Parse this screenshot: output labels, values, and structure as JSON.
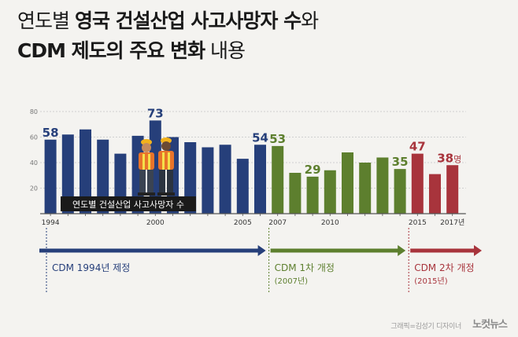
{
  "title": {
    "line1_light": "연도별 ",
    "line1_bold": "영국 건설산업 사고사망자 수",
    "line1_light_end": "와",
    "line2_bold": "CDM 제도의 주요 변화",
    "line2_light": " 내용"
  },
  "chart_data": {
    "type": "bar",
    "title": "연도별 건설산업 사고사망자 수",
    "unit": "명",
    "x": [
      1994,
      1995,
      1996,
      1997,
      1998,
      1999,
      2000,
      2001,
      2002,
      2003,
      2004,
      2005,
      2006,
      2007,
      2008,
      2009,
      2010,
      2011,
      2012,
      2013,
      2014,
      2015,
      2016,
      2017
    ],
    "values": [
      58,
      62,
      66,
      58,
      47,
      61,
      73,
      60,
      56,
      52,
      54,
      43,
      54,
      53,
      32,
      29,
      34,
      48,
      40,
      44,
      35,
      47,
      31,
      38
    ],
    "ylim": [
      0,
      80
    ],
    "yticks": [
      20,
      40,
      60,
      80
    ],
    "xtick_labels": [
      {
        "year": 1994,
        "label": "1994"
      },
      {
        "year": 2000,
        "label": "2000"
      },
      {
        "year": 2005,
        "label": "2005"
      },
      {
        "year": 2007,
        "label": "2007"
      },
      {
        "year": 2010,
        "label": "2010"
      },
      {
        "year": 2015,
        "label": "2015"
      },
      {
        "year": 2017,
        "label": "2017년"
      }
    ],
    "value_labels": [
      {
        "year": 1994,
        "label": "58"
      },
      {
        "year": 2000,
        "label": "73"
      },
      {
        "year": 2006,
        "label": "54"
      },
      {
        "year": 2007,
        "label": "53"
      },
      {
        "year": 2009,
        "label": "29"
      },
      {
        "year": 2014,
        "label": "35"
      },
      {
        "year": 2015,
        "label": "47"
      },
      {
        "year": 2017,
        "label": "38",
        "suffix": "명"
      }
    ],
    "eras": [
      {
        "from": 1994,
        "to": 2006,
        "color": "#263f7a",
        "label": "CDM 1994년 제정",
        "sublabel": ""
      },
      {
        "from": 2007,
        "to": 2014,
        "color": "#5d7f2e",
        "label": "CDM 1차 개정",
        "sublabel": "(2007년)"
      },
      {
        "from": 2015,
        "to": 2017,
        "color": "#a8343c",
        "label": "CDM 2차 개정",
        "sublabel": "(2015년)"
      }
    ],
    "colors": {
      "grid": "#cfcfcf",
      "axis": "#555555",
      "label_bg": "#1a1a1a",
      "label_text": "#ffffff"
    }
  },
  "credit": "그래픽=김성기 디자이너",
  "logo": "노컷뉴스"
}
